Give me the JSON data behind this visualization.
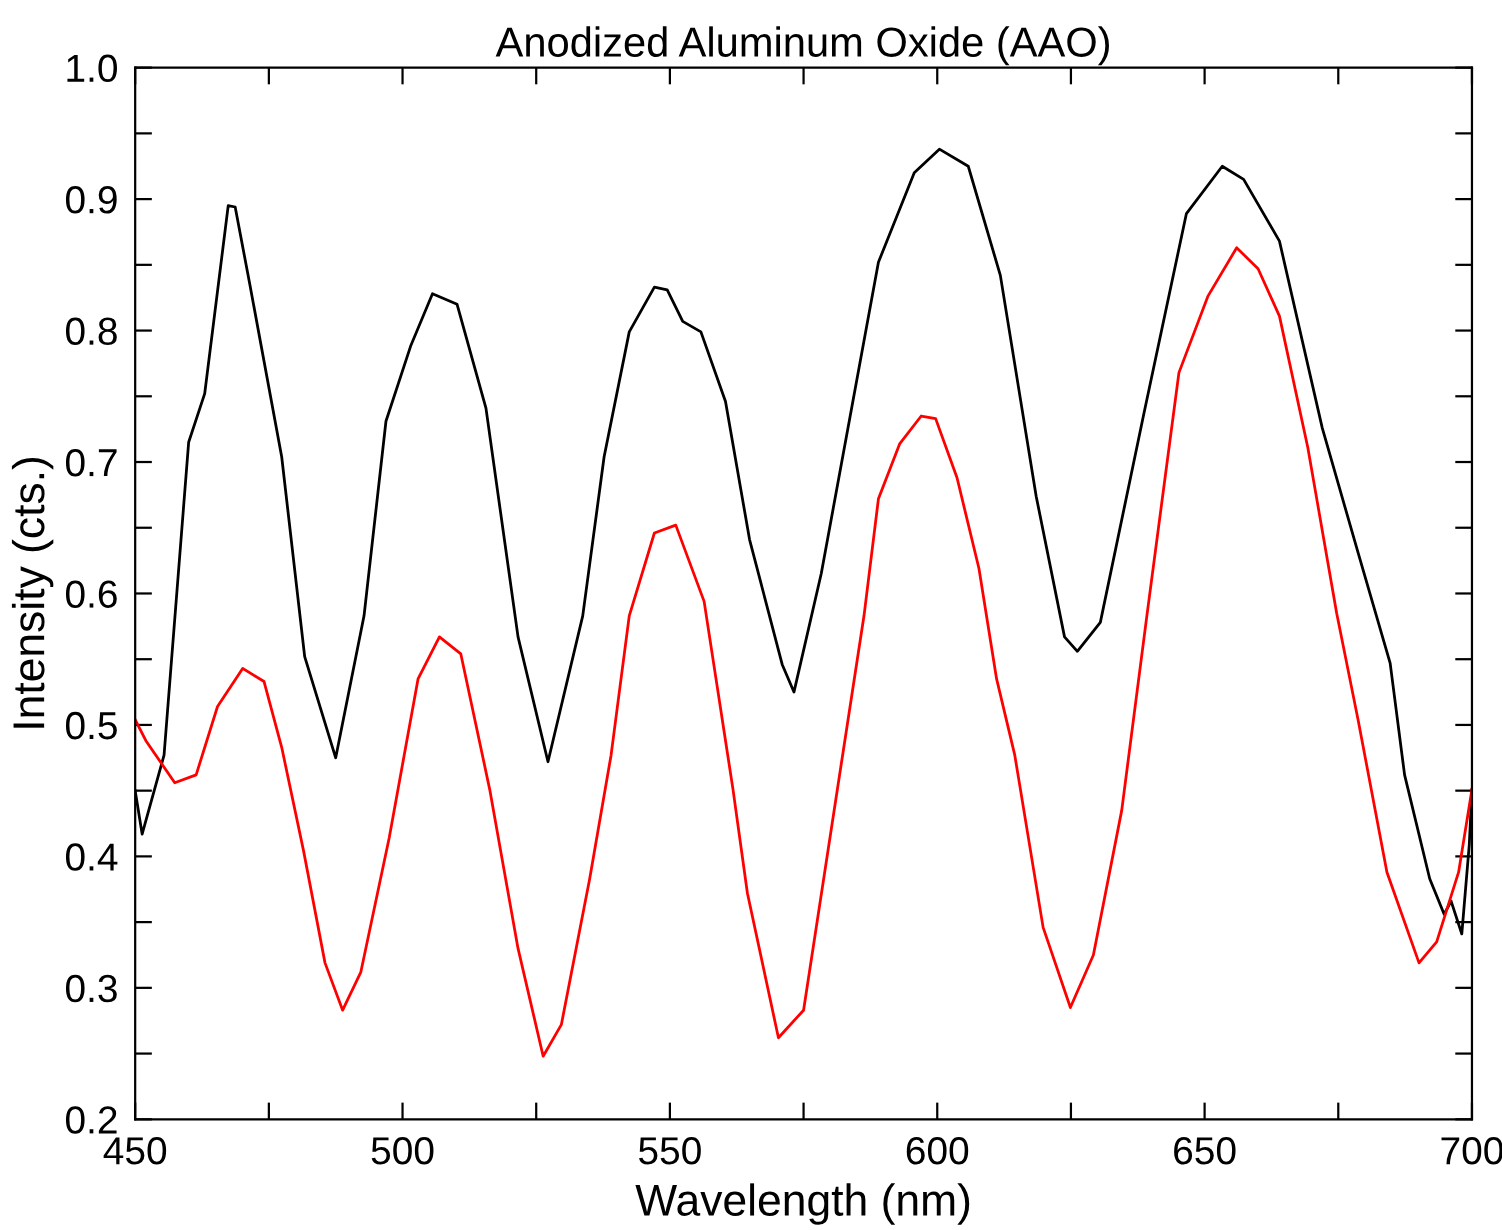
{
  "chart_data": {
    "type": "line",
    "title": "Anodized Aluminum Oxide (AAO)",
    "xlabel": "Wavelength (nm)",
    "ylabel": "Intensity (cts.)",
    "xlim": [
      450,
      700
    ],
    "ylim": [
      0.2,
      1.0
    ],
    "xticks": [
      450,
      {
        "value": 475,
        "label": null
      },
      500,
      {
        "value": 525,
        "label": null
      },
      550,
      {
        "value": 575,
        "label": null
      },
      600,
      {
        "value": 625,
        "label": null
      },
      650,
      {
        "value": 675,
        "label": null
      },
      700
    ],
    "yticks": [
      0.2,
      {
        "value": 0.25,
        "label": null
      },
      0.3,
      {
        "value": 0.35,
        "label": null
      },
      0.4,
      {
        "value": 0.45,
        "label": null
      },
      0.5,
      {
        "value": 0.55,
        "label": null
      },
      0.6,
      {
        "value": 0.65,
        "label": null
      },
      0.7,
      {
        "value": 0.75,
        "label": null
      },
      0.8,
      {
        "value": 0.85,
        "label": null
      },
      0.9,
      {
        "value": 0.95,
        "label": null
      },
      {
        "value": 1.0,
        "label": "1.0"
      }
    ],
    "grid": false,
    "marker": "none",
    "line_style": "solid",
    "series": [
      {
        "color": "#000000",
        "x": [
          450,
          451.3,
          455.4,
          460,
          463,
          467.4,
          468.7,
          471.4,
          477.4,
          481.7,
          487.5,
          492.8,
          496.9,
          501.5,
          505.6,
          510.2,
          515.6,
          521.6,
          527.2,
          533.7,
          537.7,
          542.4,
          547.1,
          549.5,
          552.4,
          555.8,
          560.4,
          564.9,
          571,
          573.2,
          578.3,
          589,
          595.7,
          600.4,
          605.8,
          611.8,
          618.5,
          623.8,
          626.2,
          630.5,
          638.6,
          646.6,
          653.3,
          657.3,
          664,
          672,
          678.7,
          684.7,
          687.4,
          692.1,
          694.8,
          696.1,
          698.1,
          699.5,
          700
        ],
        "values": [
          0.45,
          0.417,
          0.477,
          0.715,
          0.752,
          0.895,
          0.894,
          0.836,
          0.704,
          0.552,
          0.475,
          0.583,
          0.731,
          0.788,
          0.828,
          0.82,
          0.741,
          0.567,
          0.472,
          0.583,
          0.704,
          0.799,
          0.833,
          0.831,
          0.807,
          0.799,
          0.746,
          0.641,
          0.546,
          0.525,
          0.615,
          0.852,
          0.92,
          0.938,
          0.925,
          0.842,
          0.674,
          0.567,
          0.556,
          0.578,
          0.736,
          0.889,
          0.925,
          0.915,
          0.868,
          0.726,
          0.631,
          0.547,
          0.462,
          0.383,
          0.356,
          0.366,
          0.341,
          0.409,
          0.451
        ]
      },
      {
        "color": "#ff0000",
        "x": [
          450,
          452,
          457.4,
          461.4,
          465.4,
          470.1,
          474.1,
          477.4,
          481.5,
          485.5,
          488.8,
          492.2,
          497.5,
          502.9,
          506.9,
          510.9,
          516.3,
          521.6,
          526.3,
          529.7,
          535,
          539,
          542.4,
          547.1,
          551.1,
          556.4,
          561.8,
          564.5,
          570.3,
          575,
          582.3,
          586.3,
          589,
          593,
          597,
          599.7,
          603.7,
          607.8,
          611.1,
          614.5,
          619.8,
          624.9,
          629.2,
          634.5,
          639.2,
          645.2,
          650.6,
          656,
          660,
          664,
          669.3,
          674.7,
          678.7,
          684.1,
          690.1,
          693.4,
          697.5,
          700
        ],
        "values": [
          0.504,
          0.488,
          0.456,
          0.462,
          0.514,
          0.543,
          0.533,
          0.483,
          0.404,
          0.319,
          0.283,
          0.312,
          0.414,
          0.535,
          0.567,
          0.554,
          0.451,
          0.33,
          0.248,
          0.272,
          0.383,
          0.477,
          0.583,
          0.646,
          0.652,
          0.594,
          0.451,
          0.372,
          0.262,
          0.283,
          0.477,
          0.583,
          0.672,
          0.714,
          0.735,
          0.733,
          0.688,
          0.619,
          0.535,
          0.477,
          0.346,
          0.285,
          0.325,
          0.435,
          0.583,
          0.768,
          0.826,
          0.863,
          0.847,
          0.811,
          0.711,
          0.585,
          0.504,
          0.388,
          0.319,
          0.335,
          0.388,
          0.451
        ]
      }
    ]
  }
}
